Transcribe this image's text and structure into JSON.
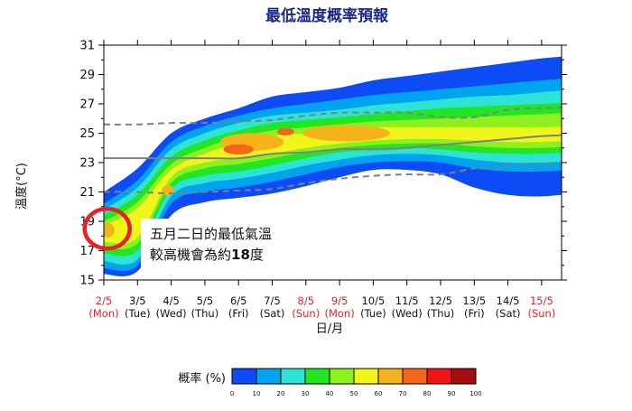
{
  "chart_data": {
    "type": "heatmap",
    "title": "最低溫度概率預報",
    "xlabel": "日/月",
    "ylabel": "溫度(°C)",
    "ylim": [
      15,
      31
    ],
    "yticks": [
      15,
      17,
      19,
      21,
      23,
      25,
      27,
      29,
      31
    ],
    "x_dates": [
      "2/5",
      "3/5",
      "4/5",
      "5/5",
      "6/5",
      "7/5",
      "8/5",
      "9/5",
      "10/5",
      "11/5",
      "12/5",
      "13/5",
      "14/5",
      "15/5"
    ],
    "x_days": [
      "(Mon)",
      "(Tue)",
      "(Wed)",
      "(Thu)",
      "(Fri)",
      "(Sat)",
      "(Sun)",
      "(Mon)",
      "(Tue)",
      "(Wed)",
      "(Thu)",
      "(Fri)",
      "(Sat)",
      "(Sun)"
    ],
    "x_highlight": [
      true,
      false,
      false,
      false,
      false,
      false,
      true,
      true,
      false,
      false,
      false,
      false,
      false,
      true
    ],
    "highlight_color": "#e8202a",
    "colorbar": {
      "label": "概率 (%)",
      "ticks": [
        0,
        10,
        20,
        30,
        40,
        50,
        60,
        70,
        80,
        90,
        100
      ],
      "colors": [
        "#0d4bf6",
        "#00a3f0",
        "#2de3d6",
        "#22e622",
        "#8ef01f",
        "#f2f51a",
        "#f4b21b",
        "#f6661a",
        "#f21414",
        "#a50e0e"
      ]
    },
    "probability_fields": [
      {
        "level": "0-10",
        "upper": [
          21,
          22.6,
          25.0,
          26.0,
          26.7,
          27.5,
          27.8,
          28.1,
          28.6,
          28.9,
          29.2,
          29.5,
          29.8,
          30.1,
          30.3
        ],
        "lower": [
          15.4,
          15.6,
          19.4,
          20.3,
          20.6,
          20.9,
          21.4,
          22.0,
          22.5,
          22.5,
          22.2,
          21.3,
          20.8,
          20.7,
          20.9
        ]
      },
      {
        "level": "10-20",
        "upper": [
          20.2,
          21.8,
          24.4,
          25.5,
          26.2,
          26.7,
          27.0,
          27.3,
          27.6,
          27.8,
          28.0,
          28.2,
          28.4,
          28.6,
          28.8
        ],
        "lower": [
          15.8,
          16.0,
          20.2,
          21.0,
          21.3,
          21.7,
          22.2,
          22.7,
          23.0,
          23.1,
          23.0,
          22.6,
          22.4,
          22.4,
          22.5
        ]
      },
      {
        "level": "20-30",
        "upper": [
          19.8,
          21.3,
          23.9,
          25.0,
          25.7,
          26.2,
          26.4,
          26.6,
          26.9,
          27.1,
          27.3,
          27.5,
          27.6,
          27.8,
          28.0
        ],
        "lower": [
          16.3,
          16.4,
          20.7,
          21.6,
          21.9,
          22.3,
          22.8,
          23.2,
          23.5,
          23.6,
          23.5,
          23.2,
          23.0,
          23.0,
          23.1
        ]
      },
      {
        "level": "30-40",
        "upper": [
          19.4,
          20.8,
          23.4,
          24.5,
          25.2,
          25.7,
          25.9,
          26.1,
          26.3,
          26.5,
          26.7,
          26.8,
          26.9,
          27.0,
          27.1
        ],
        "lower": [
          16.8,
          17.0,
          21.2,
          22.1,
          22.4,
          22.8,
          23.3,
          23.7,
          23.9,
          24.0,
          23.9,
          23.7,
          23.6,
          23.6,
          23.7
        ]
      },
      {
        "level": "40-50",
        "upper": [
          19.0,
          20.3,
          22.9,
          24.0,
          24.7,
          25.2,
          25.4,
          25.6,
          25.8,
          25.9,
          26.0,
          26.1,
          26.2,
          26.3,
          26.4
        ],
        "lower": [
          17.2,
          17.5,
          21.6,
          22.6,
          22.9,
          23.3,
          23.7,
          24.0,
          24.2,
          24.3,
          24.3,
          24.1,
          24.0,
          24.0,
          24.1
        ]
      },
      {
        "level": "50-60",
        "upper": [
          18.7,
          19.9,
          22.5,
          23.6,
          24.3,
          24.8,
          25.0,
          25.2,
          25.4,
          25.4,
          25.4,
          25.4,
          25.4,
          25.4,
          25.5
        ],
        "lower": [
          17.6,
          17.9,
          22.0,
          23.0,
          23.3,
          23.6,
          24.0,
          24.3,
          24.5,
          24.6,
          24.6,
          24.5,
          24.4,
          24.4,
          24.5
        ]
      }
    ],
    "hotspots": [
      {
        "level": "60-70",
        "x": 0.1,
        "y": 18.4,
        "rx": 0.22,
        "ry": 0.5
      },
      {
        "level": "60-70",
        "x": 1.9,
        "y": 21.1,
        "rx": 0.18,
        "ry": 0.35
      },
      {
        "level": "60-70",
        "x": 4.4,
        "y": 24.4,
        "rx": 0.95,
        "ry": 0.6
      },
      {
        "level": "60-70",
        "x": 7.2,
        "y": 25.0,
        "rx": 1.3,
        "ry": 0.55
      },
      {
        "level": "70-80",
        "x": 4.0,
        "y": 23.9,
        "rx": 0.45,
        "ry": 0.35
      },
      {
        "level": "70-80",
        "x": 5.4,
        "y": 25.1,
        "rx": 0.25,
        "ry": 0.25
      }
    ],
    "lines": [
      {
        "style": "dashed",
        "color": "#808080",
        "y": [
          25.6,
          25.6,
          25.7,
          25.7,
          25.8,
          25.9,
          26.2,
          26.4,
          26.4,
          26.4,
          26.1,
          26.1,
          26.6,
          26.7,
          26.8
        ]
      },
      {
        "style": "solid",
        "color": "#808080",
        "y": [
          23.3,
          23.3,
          23.3,
          23.3,
          23.3,
          23.6,
          23.7,
          23.9,
          23.9,
          24.0,
          24.2,
          24.4,
          24.6,
          24.8,
          24.9
        ]
      },
      {
        "style": "dashed",
        "color": "#808080",
        "y": [
          21.0,
          21.0,
          20.9,
          21.0,
          21.1,
          21.2,
          21.6,
          21.9,
          22.1,
          22.2,
          22.2,
          22.6,
          22.8,
          22.9,
          23.1
        ]
      }
    ],
    "annotation": {
      "line1": "五月二日的最低氣溫",
      "line2_prefix": "較高機會為約",
      "line2_value": "18",
      "line2_suffix": "度"
    },
    "marker": {
      "type": "circle",
      "color": "#e8202a",
      "x": 0.1,
      "y": 18.5
    }
  }
}
